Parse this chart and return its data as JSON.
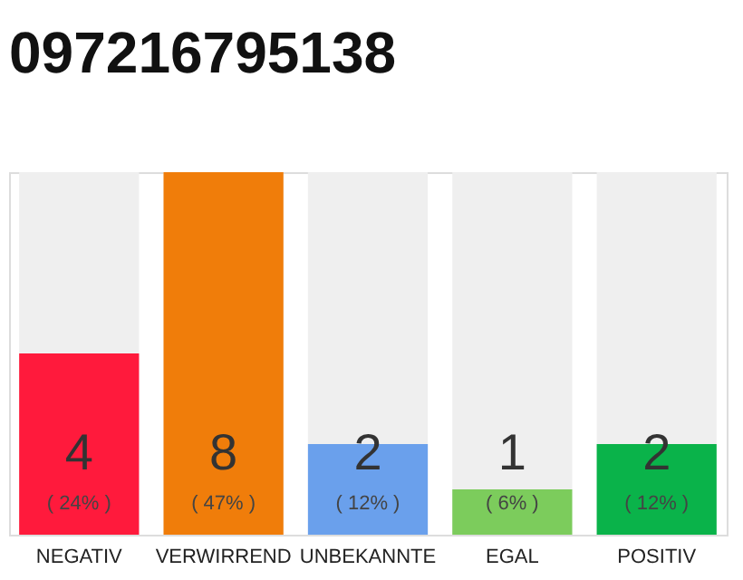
{
  "chart_data": {
    "type": "bar",
    "title": "097216795138",
    "categories": [
      "NEGATIV",
      "VERWIRREND",
      "UNBEKANNTE",
      "EGAL",
      "POSITIV"
    ],
    "values": [
      4,
      8,
      2,
      1,
      2
    ],
    "colors": [
      "#ff1a3c",
      "#f07d0a",
      "#6aa0ec",
      "#7ccc5c",
      "#0ab34a"
    ],
    "ylim": [
      0,
      8
    ],
    "tick_labels": "x",
    "grid": false,
    "data_labels": true,
    "annotations": [
      "( 24% )",
      "( 47% )",
      "( 12% )",
      "( 6% )",
      "( 12% )"
    ]
  }
}
